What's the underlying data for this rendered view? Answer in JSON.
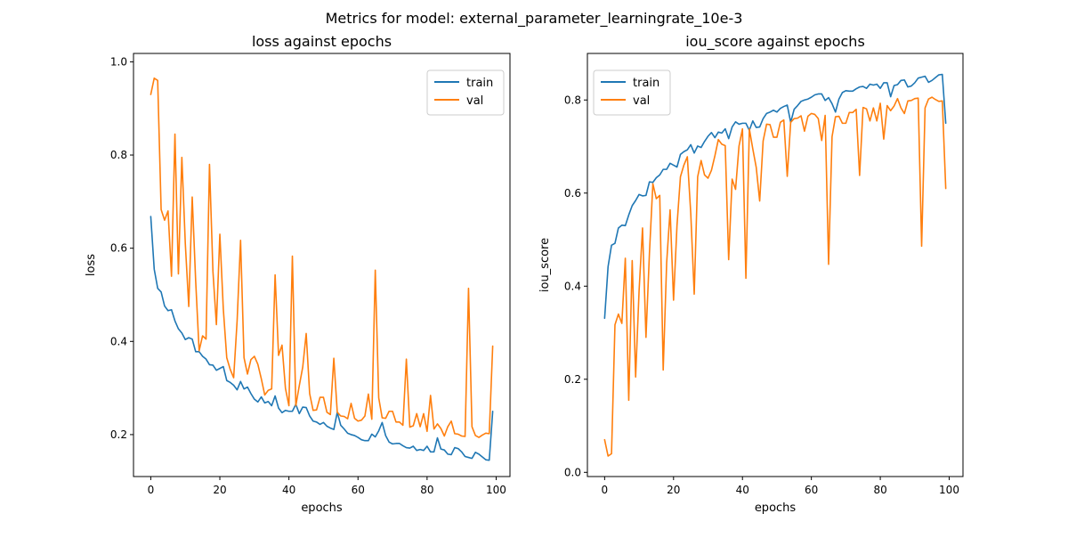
{
  "figure": {
    "suptitle": "Metrics for model: external_parameter_learningrate_10e-3"
  },
  "colors": {
    "train": "#1f77b4",
    "val": "#ff7f0e"
  },
  "chart_data": [
    {
      "type": "line",
      "title": "loss against epochs",
      "xlabel": "epochs",
      "ylabel": "loss",
      "xlim": [
        -5,
        104
      ],
      "ylim": [
        0.11,
        1.018
      ],
      "xticks": [
        0,
        20,
        40,
        60,
        80,
        100
      ],
      "yticks": [
        0.2,
        0.4,
        0.6,
        0.8,
        1.0
      ],
      "ytick_labels": [
        "0.2",
        "0.4",
        "0.6",
        "0.8",
        "1.0"
      ],
      "legend": "top-right",
      "grid": false,
      "series": [
        {
          "name": "train",
          "values": [
            0.668,
            0.555,
            0.514,
            0.506,
            0.476,
            0.466,
            0.468,
            0.444,
            0.427,
            0.418,
            0.404,
            0.408,
            0.405,
            0.378,
            0.378,
            0.368,
            0.362,
            0.35,
            0.349,
            0.338,
            0.342,
            0.346,
            0.316,
            0.312,
            0.306,
            0.296,
            0.314,
            0.298,
            0.302,
            0.288,
            0.276,
            0.27,
            0.281,
            0.268,
            0.271,
            0.262,
            0.283,
            0.257,
            0.247,
            0.252,
            0.25,
            0.25,
            0.265,
            0.245,
            0.259,
            0.258,
            0.24,
            0.229,
            0.227,
            0.222,
            0.226,
            0.218,
            0.214,
            0.211,
            0.248,
            0.22,
            0.212,
            0.203,
            0.2,
            0.198,
            0.194,
            0.189,
            0.187,
            0.187,
            0.201,
            0.195,
            0.208,
            0.226,
            0.198,
            0.184,
            0.18,
            0.181,
            0.181,
            0.176,
            0.172,
            0.171,
            0.175,
            0.166,
            0.168,
            0.166,
            0.175,
            0.163,
            0.163,
            0.193,
            0.169,
            0.167,
            0.158,
            0.157,
            0.172,
            0.17,
            0.163,
            0.153,
            0.151,
            0.149,
            0.162,
            0.158,
            0.152,
            0.146,
            0.145,
            0.25
          ]
        },
        {
          "name": "val",
          "values": [
            0.93,
            0.965,
            0.96,
            0.683,
            0.66,
            0.68,
            0.54,
            0.845,
            0.545,
            0.795,
            0.61,
            0.475,
            0.71,
            0.53,
            0.38,
            0.412,
            0.405,
            0.78,
            0.55,
            0.436,
            0.63,
            0.47,
            0.365,
            0.34,
            0.322,
            0.444,
            0.617,
            0.365,
            0.33,
            0.361,
            0.368,
            0.351,
            0.32,
            0.285,
            0.295,
            0.298,
            0.543,
            0.37,
            0.392,
            0.299,
            0.262,
            0.583,
            0.262,
            0.305,
            0.345,
            0.417,
            0.288,
            0.252,
            0.253,
            0.28,
            0.28,
            0.248,
            0.243,
            0.364,
            0.248,
            0.24,
            0.239,
            0.234,
            0.267,
            0.235,
            0.229,
            0.231,
            0.24,
            0.287,
            0.233,
            0.553,
            0.279,
            0.236,
            0.235,
            0.25,
            0.25,
            0.227,
            0.227,
            0.22,
            0.362,
            0.216,
            0.219,
            0.245,
            0.217,
            0.245,
            0.207,
            0.284,
            0.212,
            0.223,
            0.213,
            0.197,
            0.217,
            0.229,
            0.202,
            0.201,
            0.197,
            0.196,
            0.514,
            0.217,
            0.198,
            0.194,
            0.199,
            0.203,
            0.202,
            0.39
          ]
        }
      ]
    },
    {
      "type": "line",
      "title": "iou_score against epochs",
      "xlabel": "epochs",
      "ylabel": "iou_score",
      "xlim": [
        -5,
        104
      ],
      "ylim": [
        -0.009,
        0.9
      ],
      "xticks": [
        0,
        20,
        40,
        60,
        80,
        100
      ],
      "yticks": [
        0.0,
        0.2,
        0.4,
        0.6,
        0.8
      ],
      "ytick_labels": [
        "0.0",
        "0.2",
        "0.4",
        "0.6",
        "0.8"
      ],
      "legend": "top-left",
      "grid": false,
      "series": [
        {
          "name": "train",
          "values": [
            0.331,
            0.442,
            0.488,
            0.492,
            0.525,
            0.531,
            0.53,
            0.553,
            0.573,
            0.584,
            0.597,
            0.594,
            0.595,
            0.624,
            0.623,
            0.633,
            0.639,
            0.651,
            0.651,
            0.664,
            0.66,
            0.656,
            0.683,
            0.689,
            0.693,
            0.704,
            0.686,
            0.701,
            0.698,
            0.711,
            0.722,
            0.73,
            0.719,
            0.731,
            0.729,
            0.738,
            0.717,
            0.742,
            0.753,
            0.748,
            0.75,
            0.75,
            0.735,
            0.755,
            0.741,
            0.742,
            0.76,
            0.771,
            0.774,
            0.778,
            0.774,
            0.782,
            0.786,
            0.789,
            0.752,
            0.78,
            0.788,
            0.797,
            0.8,
            0.802,
            0.806,
            0.811,
            0.813,
            0.813,
            0.799,
            0.805,
            0.792,
            0.774,
            0.802,
            0.816,
            0.82,
            0.819,
            0.819,
            0.824,
            0.828,
            0.829,
            0.825,
            0.834,
            0.832,
            0.834,
            0.825,
            0.837,
            0.837,
            0.807,
            0.831,
            0.833,
            0.842,
            0.843,
            0.828,
            0.83,
            0.837,
            0.847,
            0.849,
            0.851,
            0.838,
            0.842,
            0.848,
            0.854,
            0.855,
            0.75
          ]
        },
        {
          "name": "val",
          "values": [
            0.07,
            0.035,
            0.04,
            0.317,
            0.34,
            0.32,
            0.46,
            0.155,
            0.455,
            0.205,
            0.39,
            0.525,
            0.29,
            0.47,
            0.62,
            0.588,
            0.595,
            0.22,
            0.45,
            0.564,
            0.37,
            0.53,
            0.635,
            0.66,
            0.678,
            0.556,
            0.383,
            0.635,
            0.67,
            0.639,
            0.632,
            0.649,
            0.68,
            0.715,
            0.705,
            0.702,
            0.457,
            0.63,
            0.608,
            0.701,
            0.738,
            0.417,
            0.738,
            0.695,
            0.655,
            0.583,
            0.712,
            0.748,
            0.747,
            0.72,
            0.72,
            0.752,
            0.757,
            0.636,
            0.752,
            0.76,
            0.761,
            0.766,
            0.733,
            0.765,
            0.771,
            0.769,
            0.76,
            0.713,
            0.767,
            0.447,
            0.721,
            0.764,
            0.765,
            0.75,
            0.75,
            0.773,
            0.773,
            0.78,
            0.638,
            0.784,
            0.781,
            0.755,
            0.783,
            0.755,
            0.793,
            0.716,
            0.788,
            0.777,
            0.787,
            0.803,
            0.783,
            0.771,
            0.798,
            0.799,
            0.803,
            0.804,
            0.486,
            0.783,
            0.802,
            0.806,
            0.801,
            0.797,
            0.798,
            0.61
          ]
        }
      ]
    }
  ]
}
